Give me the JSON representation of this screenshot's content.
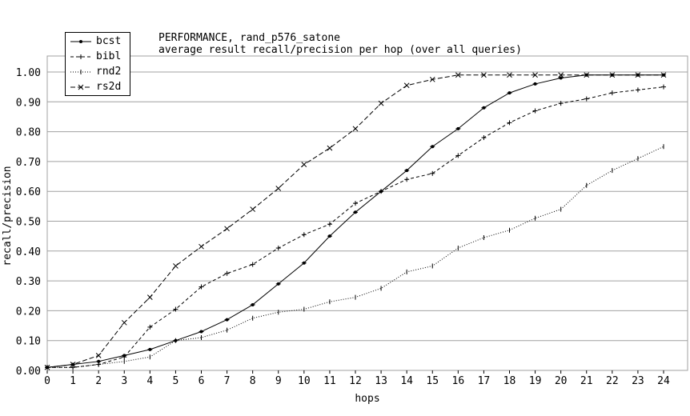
{
  "chart_data": {
    "type": "line",
    "title": "PERFORMANCE, rand_p576_satone",
    "subtitle": "average result recall/precision per hop (over all queries)",
    "xlabel": "hops",
    "ylabel": "recall/precision",
    "xlim": [
      0,
      24
    ],
    "ylim": [
      0,
      1
    ],
    "grid": "horizontal",
    "legend": "top-left",
    "x": [
      0,
      1,
      2,
      3,
      4,
      5,
      6,
      7,
      8,
      9,
      10,
      11,
      12,
      13,
      14,
      15,
      16,
      17,
      18,
      19,
      20,
      21,
      22,
      23,
      24
    ],
    "x_tick_labels": [
      "0",
      "1",
      "2",
      "3",
      "4",
      "5",
      "6",
      "7",
      "8",
      "9",
      "10",
      "11",
      "12",
      "13",
      "14",
      "15",
      "16",
      "17",
      "18",
      "19",
      "20",
      "21",
      "22",
      "23",
      "24"
    ],
    "y_ticks": [
      0,
      0.1,
      0.2,
      0.3,
      0.4,
      0.5,
      0.6,
      0.7,
      0.8,
      0.9,
      1.0
    ],
    "y_tick_labels": [
      "0.00",
      "0.10",
      "0.20",
      "0.30",
      "0.40",
      "0.50",
      "0.60",
      "0.70",
      "0.80",
      "0.90",
      "1.00"
    ],
    "series": [
      {
        "name": "bcst",
        "style": "solid",
        "marker": "dot",
        "values": [
          0.01,
          0.02,
          0.03,
          0.05,
          0.07,
          0.1,
          0.13,
          0.17,
          0.22,
          0.29,
          0.36,
          0.45,
          0.53,
          0.6,
          0.67,
          0.75,
          0.81,
          0.88,
          0.93,
          0.96,
          0.98,
          0.99,
          0.99,
          0.99,
          0.99
        ]
      },
      {
        "name": "bibl",
        "style": "dashed",
        "marker": "plus",
        "values": [
          0.01,
          0.01,
          0.02,
          0.045,
          0.145,
          0.205,
          0.28,
          0.325,
          0.355,
          0.41,
          0.455,
          0.49,
          0.56,
          0.6,
          0.64,
          0.66,
          0.72,
          0.78,
          0.83,
          0.87,
          0.895,
          0.91,
          0.93,
          0.94,
          0.95
        ]
      },
      {
        "name": "rnd2",
        "style": "dotted",
        "marker": "tick",
        "values": [
          0.01,
          0.01,
          0.02,
          0.03,
          0.045,
          0.1,
          0.11,
          0.135,
          0.175,
          0.195,
          0.205,
          0.23,
          0.245,
          0.275,
          0.33,
          0.35,
          0.41,
          0.445,
          0.47,
          0.51,
          0.54,
          0.62,
          0.67,
          0.71,
          0.75
        ]
      },
      {
        "name": "rs2d",
        "style": "dash-dot",
        "marker": "x",
        "values": [
          0.01,
          0.02,
          0.05,
          0.16,
          0.245,
          0.35,
          0.415,
          0.475,
          0.54,
          0.61,
          0.69,
          0.745,
          0.81,
          0.895,
          0.955,
          0.975,
          0.99,
          0.99,
          0.99,
          0.99,
          0.99,
          0.99,
          0.99,
          0.99,
          0.99
        ]
      }
    ]
  }
}
